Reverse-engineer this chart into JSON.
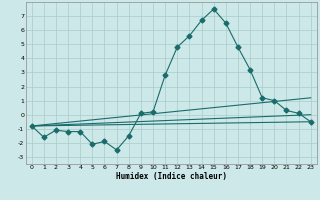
{
  "xlabel": "Humidex (Indice chaleur)",
  "xlim": [
    -0.5,
    23.5
  ],
  "ylim": [
    -3.5,
    8.0
  ],
  "yticks": [
    -3,
    -2,
    -1,
    0,
    1,
    2,
    3,
    4,
    5,
    6,
    7
  ],
  "xticks": [
    0,
    1,
    2,
    3,
    4,
    5,
    6,
    7,
    8,
    9,
    10,
    11,
    12,
    13,
    14,
    15,
    16,
    17,
    18,
    19,
    20,
    21,
    22,
    23
  ],
  "bg_color": "#cde8e8",
  "grid_color": "#aacccc",
  "line_color": "#1a6b6b",
  "series1_x": [
    0,
    1,
    2,
    3,
    4,
    5,
    6,
    7,
    8,
    9,
    10,
    11,
    12,
    13,
    14,
    15,
    16,
    17,
    18,
    19,
    20,
    21,
    22,
    23
  ],
  "series1_y": [
    -0.8,
    -1.6,
    -1.1,
    -1.2,
    -1.2,
    -2.1,
    -1.9,
    -2.5,
    -1.5,
    0.1,
    0.2,
    2.8,
    4.8,
    5.6,
    6.7,
    7.5,
    6.5,
    4.8,
    3.2,
    1.2,
    1.0,
    0.3,
    0.1,
    -0.5
  ],
  "series2_x": [
    0,
    23
  ],
  "series2_y": [
    -0.8,
    -0.5
  ],
  "series3_x": [
    0,
    23
  ],
  "series3_y": [
    -0.8,
    0.0
  ],
  "series4_x": [
    0,
    23
  ],
  "series4_y": [
    -0.8,
    1.2
  ]
}
